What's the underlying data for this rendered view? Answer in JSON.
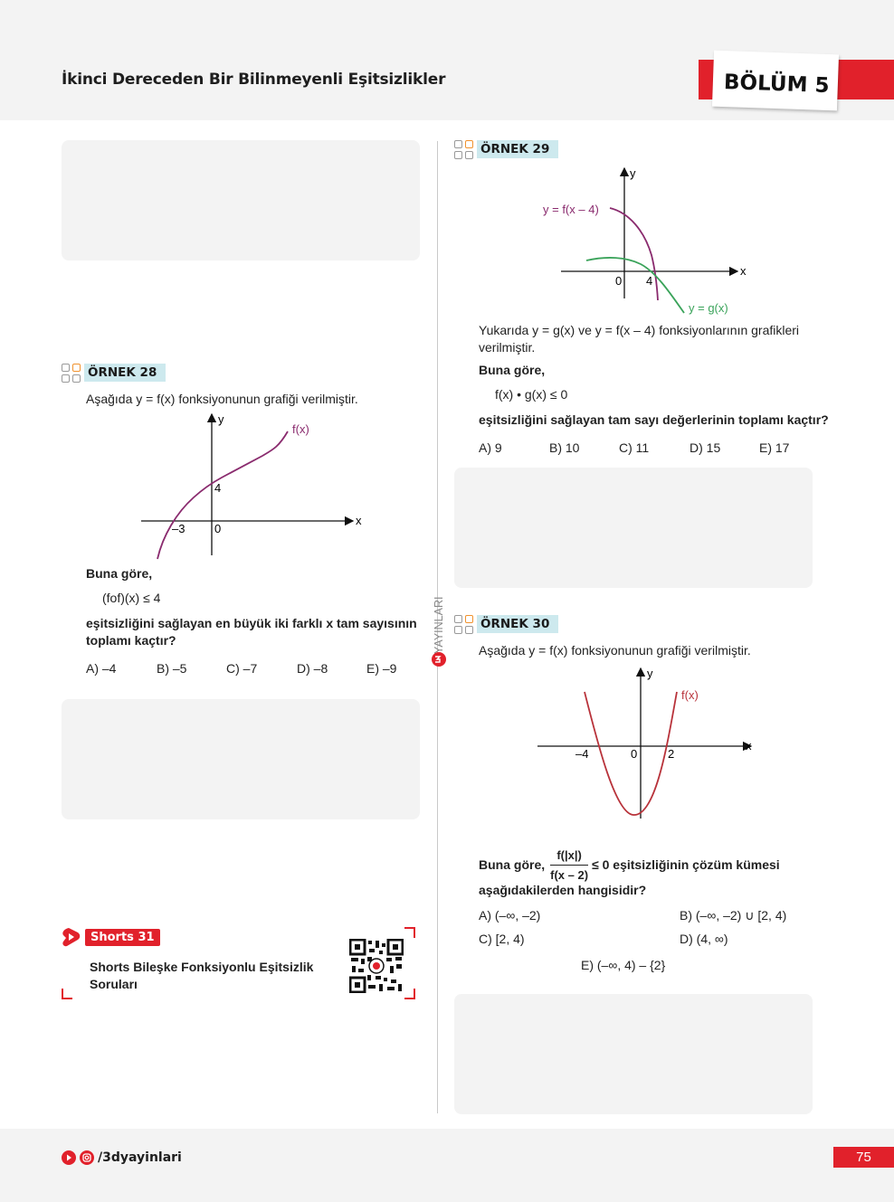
{
  "header": {
    "title": "İkinci Dereceden Bir Bilinmeyenli Eşitsizlikler",
    "section": "BÖLÜM 5"
  },
  "ex28": {
    "badge": "ÖRNEK 28",
    "intro": "Aşağıda y = f(x) fonksiyonunun grafiği verilmiştir.",
    "graph": {
      "curve_label": "f(x)",
      "y_axis": "y",
      "x_axis": "x",
      "y_tick": "4",
      "x_tick_neg": "–3",
      "origin": "0"
    },
    "lead": "Buna göre,",
    "expr": "(fof)(x) ≤ 4",
    "question_line1": "eşitsizliğini sağlayan en büyük iki farklı x tam sayısının",
    "question_line2": "toplamı kaçtır?",
    "options": [
      "A) –4",
      "B) –5",
      "C) –7",
      "D) –8",
      "E) –9"
    ]
  },
  "shorts": {
    "badge": "Shorts 31",
    "title_line1": "Shorts Bileşke Fonksiyonlu Eşitsizlik",
    "title_line2": "Soruları"
  },
  "ex29": {
    "badge": "ÖRNEK 29",
    "graph": {
      "f_label": "y = f(x – 4)",
      "g_label": "y = g(x)",
      "y_axis": "y",
      "x_axis": "x",
      "origin": "0",
      "x_tick": "4"
    },
    "intro_line1": "Yukarıda y = g(x) ve y = f(x – 4) fonksiyonlarının grafikleri",
    "intro_line2": "verilmiştir.",
    "lead": "Buna göre,",
    "expr": "f(x) • g(x) ≤ 0",
    "question": "eşitsizliğini sağlayan tam sayı değerlerinin toplamı kaçtır?",
    "options": [
      "A) 9",
      "B) 10",
      "C) 11",
      "D) 15",
      "E) 17"
    ]
  },
  "ex30": {
    "badge": "ÖRNEK 30",
    "intro": "Aşağıda y = f(x) fonksiyonunun grafiği verilmiştir.",
    "graph": {
      "curve_label": "f(x)",
      "y_axis": "y",
      "x_axis": "x",
      "origin": "0",
      "x_tick_neg": "–4",
      "x_tick_pos": "2"
    },
    "lead": "Buna göre,",
    "frac_num": "f(|x|)",
    "frac_den": "f(x – 2)",
    "frac_tail": "≤ 0  eşitsizliğinin çözüm kümesi",
    "question": "aşağıdakilerden hangisidir?",
    "options": [
      "A) (–∞, –2)",
      "B) (–∞, –2) ∪ [2, 4)",
      "C) [2, 4)",
      "D) (4, ∞)",
      "E) (–∞, 4) – {2}"
    ]
  },
  "side_label": "YAYINLARI",
  "footer": {
    "handle": "/3dyayinlari",
    "page_number": "75"
  },
  "colors": {
    "accent_red": "#e1212b",
    "badge_blue": "#cde9ee",
    "curve_purple": "#8a2b6e",
    "curve_green": "#3aa35a",
    "curve_red": "#b8323a"
  }
}
